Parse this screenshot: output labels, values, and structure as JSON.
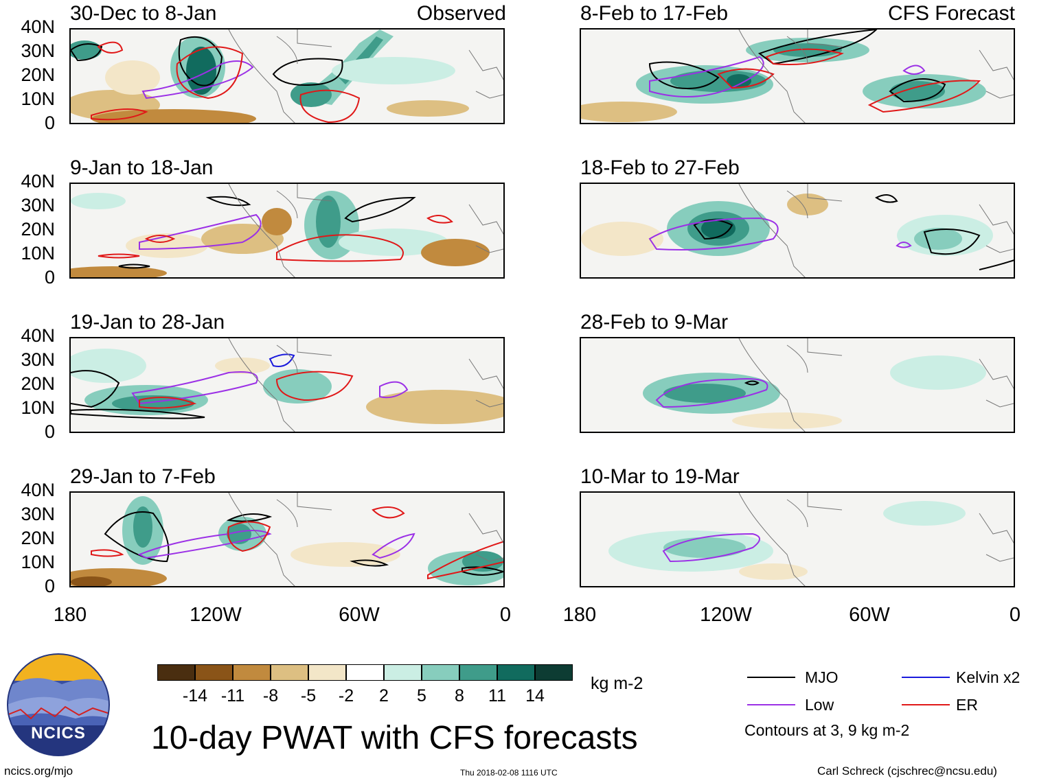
{
  "panels": {
    "left": [
      {
        "title": "30-Dec to 8-Jan",
        "tag": "Observed"
      },
      {
        "title": "9-Jan to 18-Jan",
        "tag": ""
      },
      {
        "title": "19-Jan to 28-Jan",
        "tag": ""
      },
      {
        "title": "29-Jan to 7-Feb",
        "tag": ""
      }
    ],
    "right": [
      {
        "title": "8-Feb to 17-Feb",
        "tag": "CFS Forecast"
      },
      {
        "title": "18-Feb to 27-Feb",
        "tag": ""
      },
      {
        "title": "28-Feb to 9-Mar",
        "tag": ""
      },
      {
        "title": "10-Mar to 19-Mar",
        "tag": ""
      }
    ]
  },
  "axes": {
    "lat_labels": [
      "40N",
      "30N",
      "20N",
      "10N",
      "0"
    ],
    "lon_labels": [
      "180",
      "120W",
      "60W",
      "0"
    ]
  },
  "colorbar": {
    "labels": [
      "-14",
      "-11",
      "-8",
      "-5",
      "-2",
      "2",
      "5",
      "8",
      "11",
      "14"
    ],
    "colors": [
      "#4a2e10",
      "#8a5418",
      "#c18a3e",
      "#ddbf82",
      "#f3e6c8",
      "#ffffff",
      "#cbeee4",
      "#87cdbd",
      "#3f9c8a",
      "#116b5e",
      "#0d3c33"
    ],
    "units": "kg m-2"
  },
  "legend": {
    "mjo": "MJO",
    "kelvin": "Kelvin x2",
    "low": "Low",
    "er": "ER",
    "contours_note": "Contours at 3, 9 kg m-2",
    "colors": {
      "mjo": "#000000",
      "kelvin": "#1a1adc",
      "low": "#9b30e6",
      "er": "#e01818"
    }
  },
  "title": "10-day PWAT with CFS forecasts",
  "logo_text": "NCICS",
  "footer": {
    "site": "ncics.org/mjo",
    "timestamp": "Thu 2018-02-08 1116 UTC",
    "author": "Carl Schreck (cjschrec@ncsu.edu)"
  }
}
